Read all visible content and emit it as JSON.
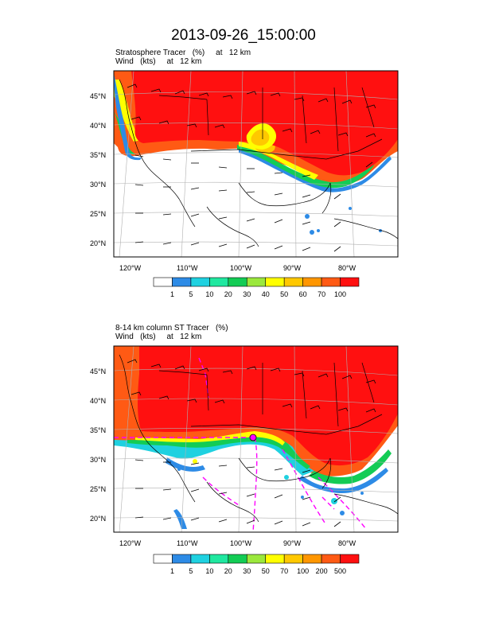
{
  "title": "2013-09-26_15:00:00",
  "panels": [
    {
      "line1": "Stratosphere Tracer   (%)     at   12 km",
      "line2": "Wind   (kts)     at   12 km",
      "colorbar_labels": [
        "1",
        "5",
        "10",
        "20",
        "30",
        "40",
        "50",
        "60",
        "70",
        "100"
      ]
    },
    {
      "line1": "8-14 km column ST Tracer   (%)",
      "line2": "Wind   (kts)     at   12 km",
      "colorbar_labels": [
        "1",
        "5",
        "10",
        "20",
        "30",
        "50",
        "70",
        "100",
        "200",
        "500"
      ]
    }
  ],
  "lat_labels": [
    "45°N",
    "40°N",
    "35°N",
    "30°N",
    "25°N",
    "20°N"
  ],
  "lon_labels": [
    "120°W",
    "110°W",
    "100°W",
    "90°W",
    "80°W"
  ],
  "colors": [
    "#ffffff",
    "#2d8be6",
    "#1fd1e0",
    "#20e8a0",
    "#13cc55",
    "#9be83c",
    "#ffff00",
    "#ffc800",
    "#ff9600",
    "#ff5a14",
    "#ff1010"
  ]
}
